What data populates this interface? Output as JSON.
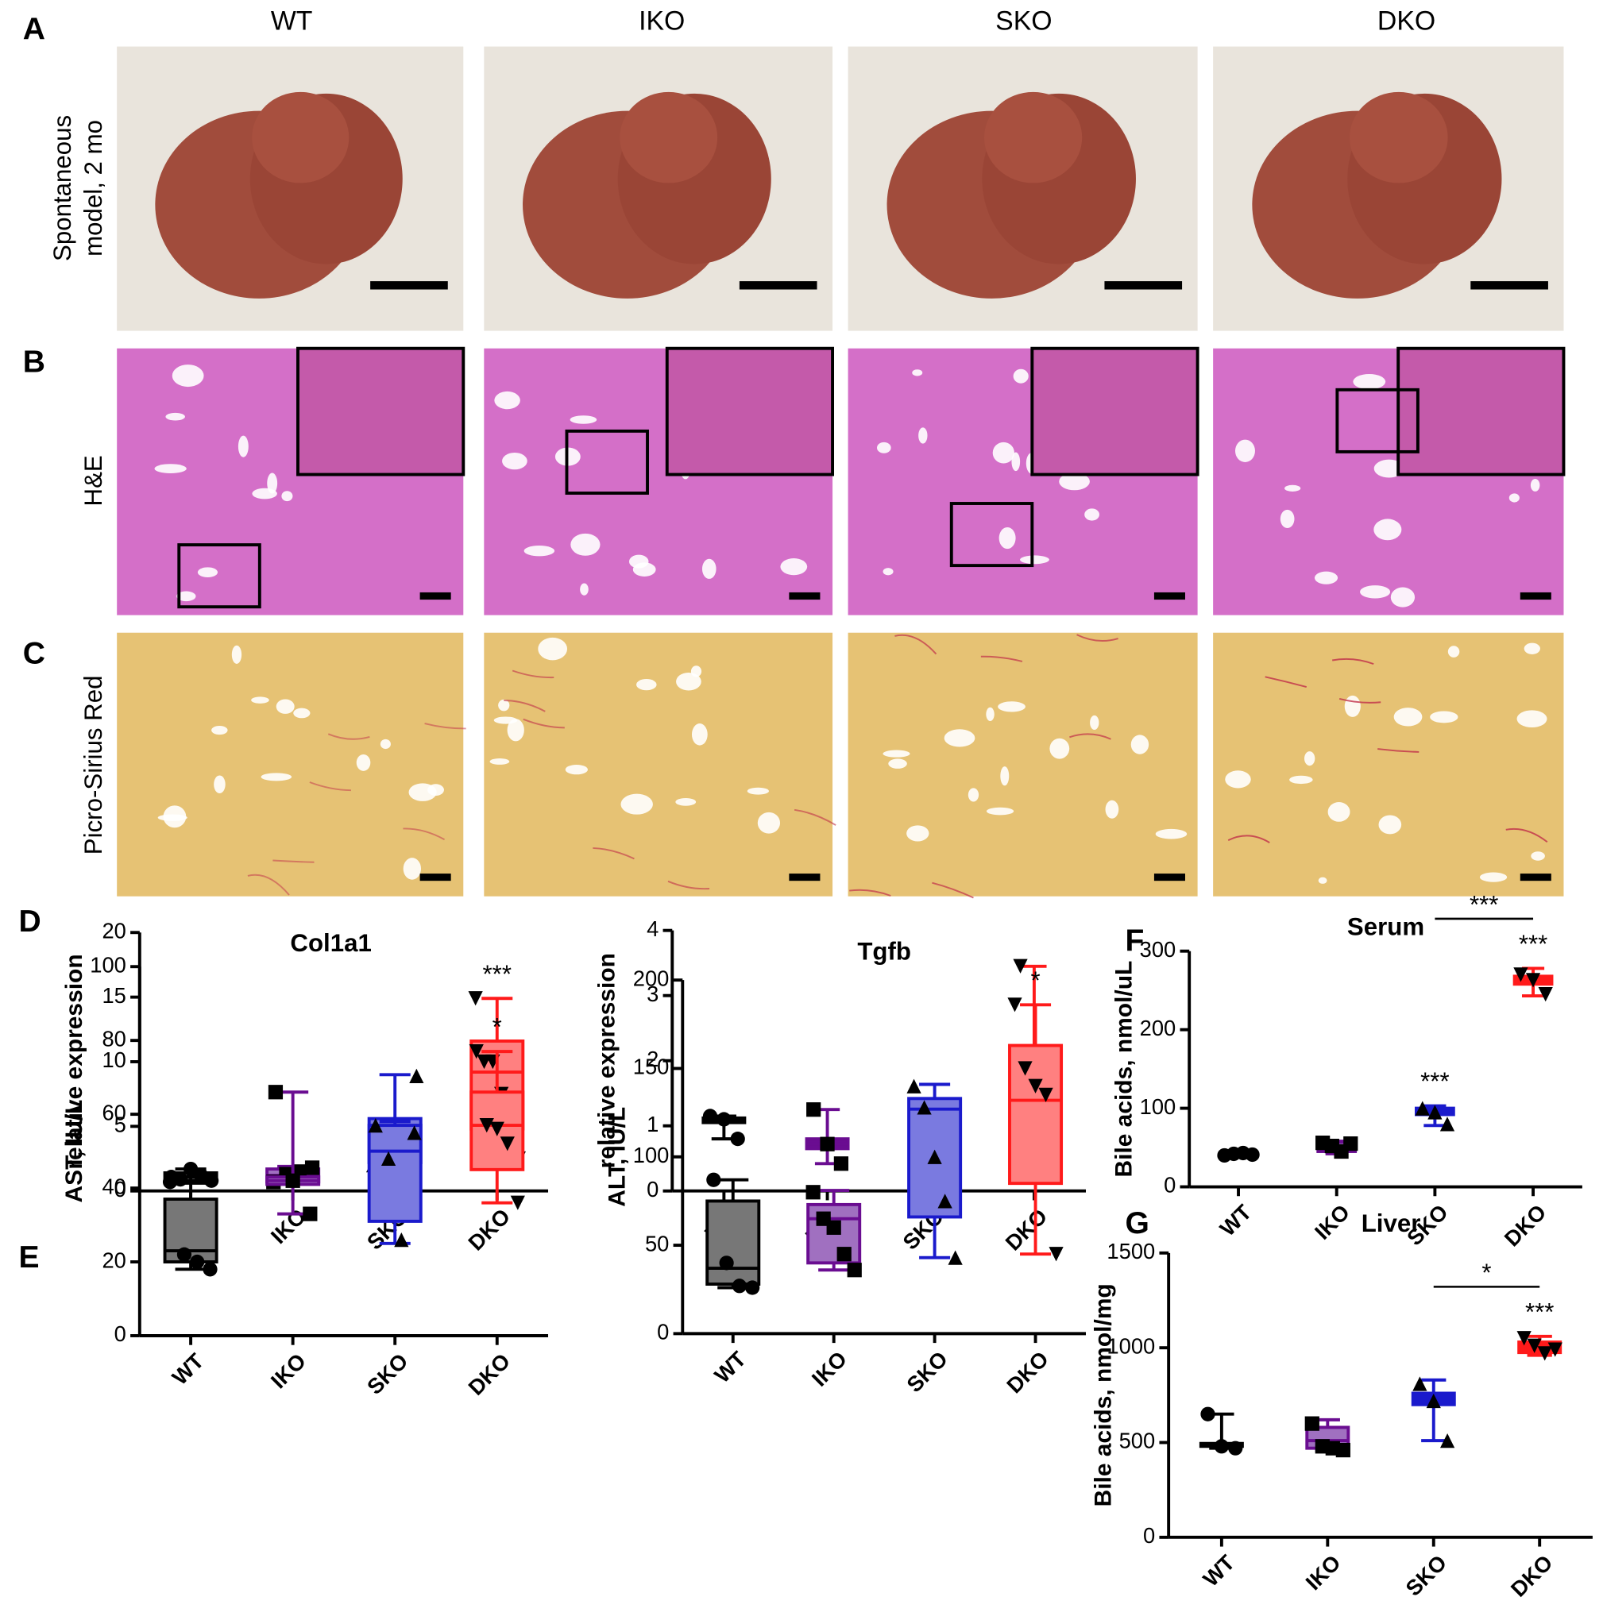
{
  "column_labels": [
    "WT",
    "IKO",
    "SKO",
    "DKO"
  ],
  "panel_labels": [
    "A",
    "B",
    "C",
    "D",
    "E",
    "F",
    "G"
  ],
  "row_labels": {
    "photo": [
      "Spontaneous",
      "model, 2 mo"
    ],
    "he": "H&E",
    "sirius": "Picro-Sirius Red"
  },
  "chart_data": [
    {
      "type": "box",
      "title": "Col1a1",
      "ylabel": "relative expression",
      "categories": [
        "WT",
        "IKO",
        "SKO",
        "DKO"
      ],
      "ylim": [
        0,
        20
      ],
      "yticks": [
        0,
        5,
        10,
        15,
        20
      ],
      "boxes": [
        {
          "color": "#000000",
          "fill": "#777777",
          "marker": "circle",
          "min": 0.6,
          "q1": 0.8,
          "median": 1.1,
          "q3": 1.4,
          "max": 1.7,
          "points": [
            0.7,
            0.9,
            1.7,
            1.2,
            0.8
          ]
        },
        {
          "color": "#6a0d91",
          "fill": "#a070c0",
          "marker": "square",
          "min": 0.6,
          "q1": 0.7,
          "median": 1.2,
          "q3": 1.7,
          "max": 1.9,
          "points": [
            0.7,
            1.3,
            1.5,
            1.8
          ]
        },
        {
          "color": "#1a1acc",
          "fill": "#7a7ae0",
          "marker": "triangle-up",
          "min": 1.8,
          "q1": 2.2,
          "median": 3.4,
          "q3": 5.6,
          "max": 9.0,
          "points": [
            2.0,
            2.3,
            4.3,
            4.5,
            3.0,
            8.9
          ]
        },
        {
          "color": "#ff1a1a",
          "fill": "#ff8080",
          "marker": "triangle-down",
          "min": 2.5,
          "q1": 4.8,
          "median": 9.2,
          "q3": 11.6,
          "max": 14.9,
          "points": [
            14.9,
            10.0,
            10.0,
            7.5,
            5.5,
            2.5
          ],
          "annotation": "***"
        }
      ]
    },
    {
      "type": "box",
      "title": "Tgfb",
      "ylabel": "relative expression",
      "categories": [
        "WT",
        "IKO",
        "SKO",
        "DKO"
      ],
      "ylim": [
        0,
        4
      ],
      "yticks": [
        0,
        1,
        2,
        3,
        4
      ],
      "boxes": [
        {
          "color": "#000000",
          "fill": "#000000",
          "marker": "circle",
          "min": 0.8,
          "q1": 1.05,
          "median": 1.07,
          "q3": 1.12,
          "max": 1.15,
          "points": [
            1.15,
            1.1,
            0.8
          ]
        },
        {
          "color": "#6a0d91",
          "fill": "#6a0d91",
          "marker": "square",
          "min": 0.42,
          "q1": 0.65,
          "median": 0.72,
          "q3": 0.8,
          "max": 1.25,
          "points": [
            1.25,
            0.72,
            0.42
          ]
        },
        {
          "color": "#1a1acc",
          "fill": "#1a1acc",
          "marker": "triangle-up",
          "min": 0.3,
          "q1": 0.65,
          "median": 0.73,
          "q3": 0.78,
          "max": 0.85,
          "points": [
            0.8,
            0.7,
            0.3
          ]
        },
        {
          "color": "#ff1a1a",
          "fill": "#ff1a1a",
          "marker": "triangle-down",
          "min": 1.35,
          "q1": 1.5,
          "median": 1.55,
          "q3": 1.58,
          "max": 3.45,
          "points": [
            3.45,
            1.55,
            1.35
          ]
        }
      ]
    },
    {
      "type": "box",
      "title": "Serum",
      "ylabel": "Bile acids, nmol/uL",
      "categories": [
        "WT",
        "IKO",
        "SKO",
        "DKO"
      ],
      "ylim": [
        0,
        300
      ],
      "yticks": [
        0,
        100,
        200,
        300
      ],
      "boxes": [
        {
          "color": "#000000",
          "fill": "#000000",
          "marker": "circle",
          "min": 38,
          "q1": 40,
          "median": 41,
          "q3": 43,
          "max": 44,
          "points": [
            40,
            42,
            43,
            41
          ]
        },
        {
          "color": "#6a0d91",
          "fill": "#a070c0",
          "marker": "square",
          "min": 42,
          "q1": 45,
          "median": 50,
          "q3": 57,
          "max": 58,
          "points": [
            56,
            52,
            45,
            55
          ]
        },
        {
          "color": "#1a1acc",
          "fill": "#1a1acc",
          "marker": "triangle-up",
          "min": 78,
          "q1": 92,
          "median": 97,
          "q3": 100,
          "max": 103,
          "points": [
            100,
            95,
            80
          ],
          "annotation": "***"
        },
        {
          "color": "#ff1a1a",
          "fill": "#ff1a1a",
          "marker": "triangle-down",
          "min": 243,
          "q1": 258,
          "median": 264,
          "q3": 268,
          "max": 278,
          "points": [
            270,
            263,
            245
          ],
          "annotation": "***"
        }
      ],
      "bracket": {
        "from": 2,
        "to": 3,
        "label": "***"
      }
    },
    {
      "type": "box",
      "ylabel": "AST, IU/L",
      "categories": [
        "WT",
        "IKO",
        "SKO",
        "DKO"
      ],
      "ylim": [
        0,
        100
      ],
      "yticks": [
        0,
        20,
        40,
        60,
        80,
        100
      ],
      "boxes": [
        {
          "color": "#000000",
          "fill": "#777777",
          "marker": "circle",
          "min": 18,
          "q1": 20,
          "median": 23,
          "q3": 37,
          "max": 43,
          "points": [
            43,
            22,
            20,
            18
          ]
        },
        {
          "color": "#6a0d91",
          "fill": "#a070c0",
          "marker": "square",
          "min": 33,
          "q1": 41,
          "median": 42,
          "q3": 43,
          "max": 66,
          "points": [
            66,
            42,
            33
          ]
        },
        {
          "color": "#1a1acc",
          "fill": "#7a7ae0",
          "marker": "triangle-up",
          "min": 25,
          "q1": 31,
          "median": 50,
          "q3": 57,
          "max": 58,
          "points": [
            57,
            48,
            26,
            55
          ]
        },
        {
          "color": "#ff1a1a",
          "fill": "#ff8080",
          "marker": "triangle-down",
          "min": 36,
          "q1": 45,
          "median": 57,
          "q3": 66,
          "max": 77,
          "points": [
            77,
            57,
            56,
            52,
            36
          ],
          "annotation": "*"
        }
      ]
    },
    {
      "type": "box",
      "ylabel": "ALT, IU/L",
      "categories": [
        "WT",
        "IKO",
        "SKO",
        "DKO"
      ],
      "ylim": [
        0,
        200
      ],
      "yticks": [
        0,
        50,
        100,
        150,
        200
      ],
      "boxes": [
        {
          "color": "#000000",
          "fill": "#777777",
          "marker": "circle",
          "min": 26,
          "q1": 28,
          "median": 37,
          "q3": 75,
          "max": 87,
          "points": [
            87,
            40,
            27,
            26
          ]
        },
        {
          "color": "#6a0d91",
          "fill": "#a070c0",
          "marker": "square",
          "min": 36,
          "q1": 40,
          "median": 65,
          "q3": 73,
          "max": 81,
          "points": [
            80,
            65,
            60,
            45,
            36
          ]
        },
        {
          "color": "#1a1acc",
          "fill": "#7a7ae0",
          "marker": "triangle-up",
          "min": 43,
          "q1": 66,
          "median": 127,
          "q3": 133,
          "max": 141,
          "points": [
            140,
            128,
            100,
            75,
            43
          ]
        },
        {
          "color": "#ff1a1a",
          "fill": "#ff8080",
          "marker": "triangle-down",
          "min": 45,
          "q1": 85,
          "median": 132,
          "q3": 163,
          "max": 186,
          "points": [
            186,
            150,
            140,
            135,
            45
          ],
          "annotation": "*"
        }
      ]
    },
    {
      "type": "box",
      "title": "Liver",
      "ylabel": "Bile acids, nmol/mg",
      "categories": [
        "WT",
        "IKO",
        "SKO",
        "DKO"
      ],
      "ylim": [
        0,
        1500
      ],
      "yticks": [
        0,
        500,
        1000,
        1500
      ],
      "boxes": [
        {
          "color": "#000000",
          "fill": "#000000",
          "marker": "circle",
          "min": 470,
          "q1": 480,
          "median": 490,
          "q3": 495,
          "max": 650,
          "points": [
            650,
            480,
            470
          ]
        },
        {
          "color": "#6a0d91",
          "fill": "#a070c0",
          "marker": "square",
          "min": 460,
          "q1": 470,
          "median": 510,
          "q3": 580,
          "max": 620,
          "points": [
            600,
            480,
            470,
            460
          ]
        },
        {
          "color": "#1a1acc",
          "fill": "#1a1acc",
          "marker": "triangle-up",
          "min": 510,
          "q1": 700,
          "median": 730,
          "q3": 760,
          "max": 830,
          "points": [
            810,
            720,
            510
          ]
        },
        {
          "color": "#ff1a1a",
          "fill": "#ff1a1a",
          "marker": "triangle-down",
          "min": 960,
          "q1": 975,
          "median": 1000,
          "q3": 1030,
          "max": 1060,
          "points": [
            1050,
            1010,
            970,
            990
          ],
          "annotation": "***"
        }
      ],
      "bracket": {
        "from": 2,
        "to": 3,
        "label": "*"
      }
    }
  ]
}
